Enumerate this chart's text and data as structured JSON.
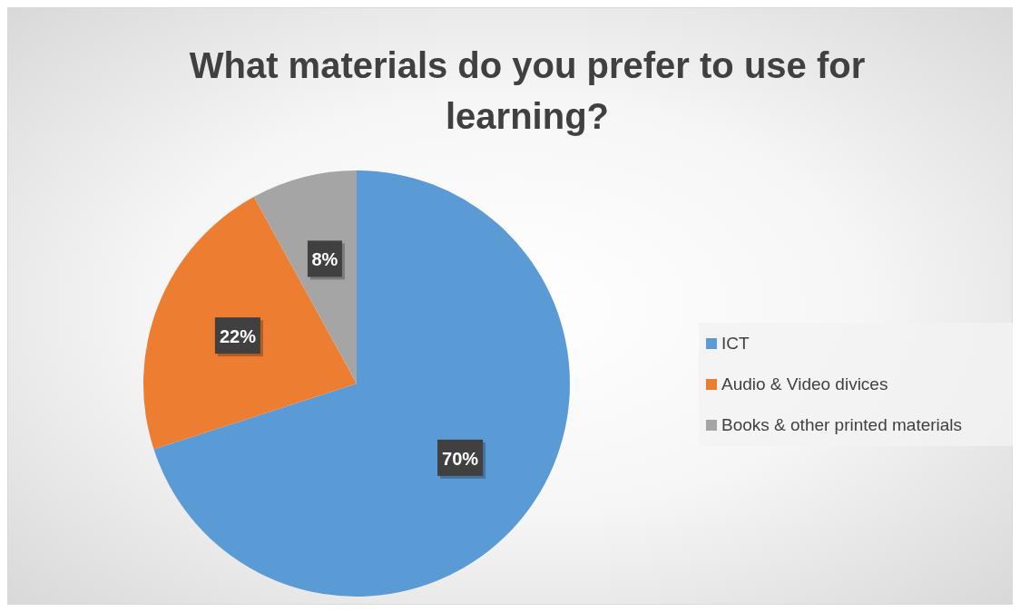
{
  "chart_data": {
    "type": "pie",
    "title": "What materials do you prefer to use for learning?",
    "categories": [
      "ICT",
      "Audio & Video divices",
      "Books & other printed materials"
    ],
    "values": [
      70,
      22,
      8
    ],
    "colors": [
      "#5b9bd5",
      "#ed7d31",
      "#a5a5a5"
    ],
    "value_labels": [
      "70%",
      "22%",
      "8%"
    ],
    "legend": "right"
  }
}
